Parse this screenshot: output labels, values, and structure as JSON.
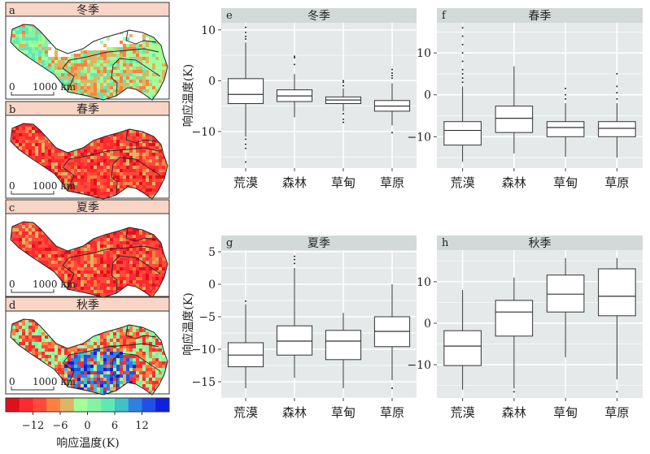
{
  "maps": {
    "panels": [
      {
        "letter": "a",
        "title": "冬季",
        "scale_zero": "0",
        "scale_label": "1000 km"
      },
      {
        "letter": "b",
        "title": "春季",
        "scale_zero": "0",
        "scale_label": "1000 km"
      },
      {
        "letter": "c",
        "title": "夏季",
        "scale_zero": "0",
        "scale_label": "1000 km"
      },
      {
        "letter": "d",
        "title": "秋季",
        "scale_zero": "0",
        "scale_label": "1000 km"
      }
    ],
    "colorbar": {
      "colors": [
        "#e0101a",
        "#ff2a30",
        "#ff4a3a",
        "#ff8040",
        "#dfb462",
        "#a4ff98",
        "#84f4a4",
        "#60e8b4",
        "#40c0c8",
        "#3080e0",
        "#2050e8",
        "#1020e0"
      ],
      "ticks": [
        "−12",
        "−6",
        "0",
        "6",
        "12"
      ],
      "label": "响应温度(K)"
    },
    "colors": {
      "strip": "#f9d5c6",
      "snow": "#ffffff",
      "boundary": "#222222"
    }
  },
  "chart_data": [
    {
      "type": "boxplot",
      "letter": "e",
      "title": "冬季",
      "ylabel": "响应温度(K)",
      "categories": [
        "荒漠",
        "森林",
        "草甸",
        "草原"
      ],
      "yticks": [
        10,
        0,
        -10
      ],
      "ylim": [
        -17.2,
        11.4
      ],
      "grid": true,
      "boxes": [
        {
          "q1": -4.5,
          "median": -2.7,
          "q3": 0.4,
          "low": -11,
          "high": 7.5,
          "outliers": [
            8.2,
            8.7,
            9.5,
            10.5,
            -11.5,
            -12.5,
            -13.3,
            -16
          ]
        },
        {
          "q1": -4.1,
          "median": -3.0,
          "q3": -1.8,
          "low": -7.2,
          "high": 1.3,
          "outliers": [
            3.2,
            4.5,
            4.8
          ]
        },
        {
          "q1": -4.5,
          "median": -3.8,
          "q3": -3.2,
          "low": -6.0,
          "high": -1.5,
          "outliers": [
            -1.0,
            -0.3,
            0,
            -6.5,
            -7.6,
            -8.2
          ]
        },
        {
          "q1": -6.0,
          "median": -5.0,
          "q3": -3.9,
          "low": -8.8,
          "high": -0.5,
          "outliers": [
            0.5,
            1.0,
            1.5,
            2.2,
            -10.2
          ]
        }
      ]
    },
    {
      "type": "boxplot",
      "letter": "f",
      "title": "春季",
      "ylabel": "",
      "categories": [
        "荒漠",
        "森林",
        "草甸",
        "草原"
      ],
      "yticks": [
        10,
        0,
        -10
      ],
      "ylim": [
        -17.5,
        17.2
      ],
      "grid": true,
      "boxes": [
        {
          "q1": -12,
          "median": -8.5,
          "q3": -6.4,
          "low": -16,
          "high": 2,
          "outliers": [
            3,
            4,
            5,
            6,
            8,
            10,
            12,
            14,
            16
          ]
        },
        {
          "q1": -9,
          "median": -5.6,
          "q3": -2.7,
          "low": -14,
          "high": 6.8,
          "outliers": []
        },
        {
          "q1": -10,
          "median": -7.8,
          "q3": -6.4,
          "low": -14.8,
          "high": -2,
          "outliers": [
            -1,
            0,
            1.5
          ]
        },
        {
          "q1": -10,
          "median": -8,
          "q3": -6.4,
          "low": -15,
          "high": -2,
          "outliers": [
            -1,
            0.5,
            2,
            5
          ]
        }
      ]
    },
    {
      "type": "boxplot",
      "letter": "g",
      "title": "夏季",
      "ylabel": "响应温度(K)",
      "categories": [
        "荒漠",
        "森林",
        "草甸",
        "草原"
      ],
      "yticks": [
        5,
        0,
        -5,
        -10,
        -15
      ],
      "ylim": [
        -17.5,
        5.25
      ],
      "grid": true,
      "boxes": [
        {
          "q1": -12.7,
          "median": -10.9,
          "q3": -9.0,
          "low": -16,
          "high": -3.1,
          "outliers": [
            -2.6
          ]
        },
        {
          "q1": -10.9,
          "median": -8.75,
          "q3": -6.4,
          "low": -14.4,
          "high": 2.5,
          "outliers": [
            3.2,
            3.8,
            4.3
          ]
        },
        {
          "q1": -11.6,
          "median": -8.75,
          "q3": -7.1,
          "low": -16,
          "high": -4.4,
          "outliers": []
        },
        {
          "q1": -9.6,
          "median": -7.25,
          "q3": -5.0,
          "low": -14.75,
          "high": 0,
          "outliers": [
            -16
          ]
        }
      ]
    },
    {
      "type": "boxplot",
      "letter": "h",
      "title": "秋季",
      "ylabel": "",
      "categories": [
        "荒漠",
        "森林",
        "草甸",
        "草原"
      ],
      "yticks": [
        10,
        0,
        -10
      ],
      "ylim": [
        -18,
        17.6
      ],
      "grid": true,
      "boxes": [
        {
          "q1": -10.2,
          "median": -5.5,
          "q3": -1.8,
          "low": -16,
          "high": 8,
          "outliers": []
        },
        {
          "q1": -3.1,
          "median": 2.7,
          "q3": 5.5,
          "low": -15.7,
          "high": 11,
          "outliers": [
            -16.5
          ]
        },
        {
          "q1": 2.7,
          "median": 7,
          "q3": 11.6,
          "low": -8.2,
          "high": 15.7,
          "outliers": []
        },
        {
          "q1": 1.8,
          "median": 6.5,
          "q3": 13.1,
          "low": -13.5,
          "high": 15.7,
          "outliers": [
            -16.5
          ]
        }
      ]
    }
  ],
  "plot_colors": {
    "panel_bg": "#e5e9e9",
    "strip_bg": "#d3d9d9",
    "grid": "#ffffff",
    "box": "#ffffff",
    "line": "#333333"
  }
}
